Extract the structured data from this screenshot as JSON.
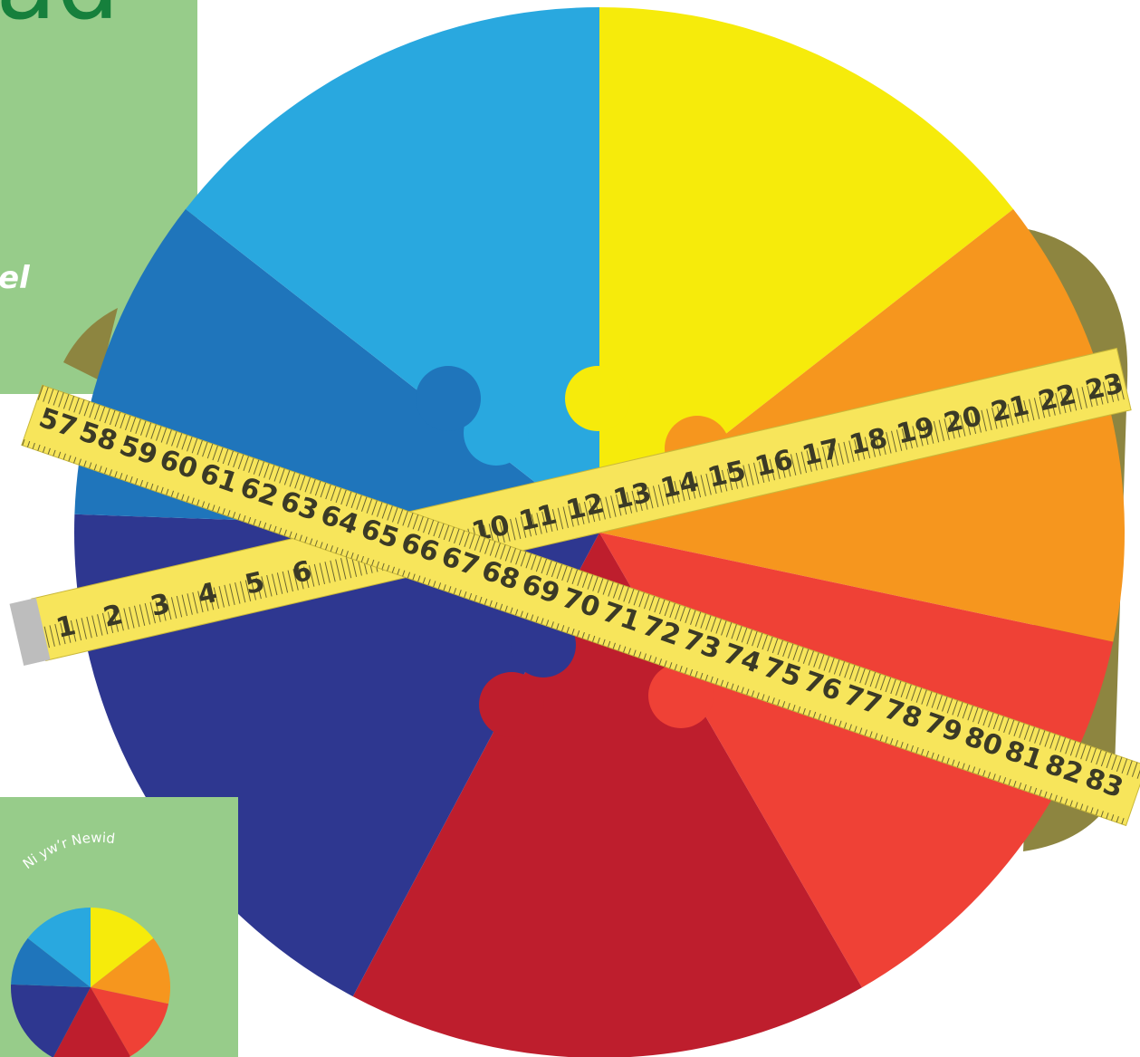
{
  "panel": {
    "title": "ad",
    "subtitle": "el"
  },
  "badge": {
    "text": "Ni yw’r Newid"
  },
  "tape": {
    "front_numbers": [
      1,
      2,
      3,
      4,
      5,
      6,
      10,
      11,
      12,
      13,
      14,
      15,
      16,
      17,
      18,
      19,
      20,
      21,
      22,
      23
    ],
    "back_numbers": [
      57,
      58,
      59,
      60,
      61,
      62,
      63,
      64,
      65,
      66,
      67,
      68,
      69,
      70,
      71,
      72,
      73,
      74,
      75,
      76,
      77,
      78,
      79,
      80,
      81,
      82,
      83
    ]
  }
}
